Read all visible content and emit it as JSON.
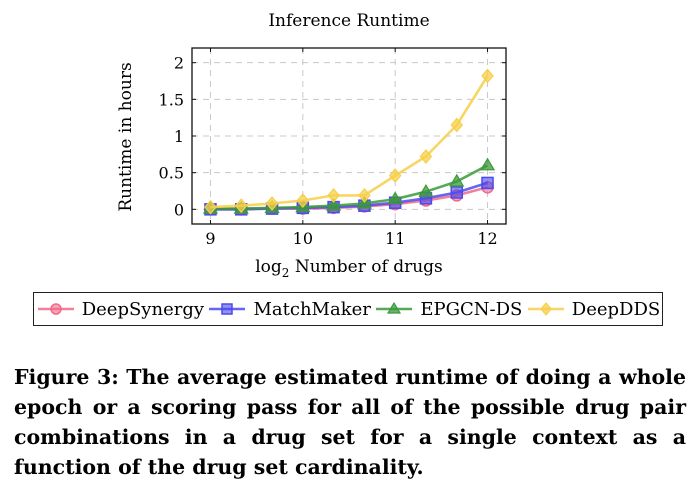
{
  "chart_data": {
    "type": "line",
    "title": "Inference Runtime",
    "xlabel_prefix": "log",
    "xlabel_sub": "2",
    "xlabel_rest": " Number of drugs",
    "ylabel": "Runtime in hours",
    "xlim": [
      8.8,
      12.2
    ],
    "ylim": [
      -0.2,
      2.2
    ],
    "xticks": [
      9,
      10,
      11,
      12
    ],
    "xtick_labels": [
      "9",
      "10",
      "11",
      "12"
    ],
    "yticks": [
      0,
      0.5,
      1,
      1.5,
      2
    ],
    "ytick_labels": [
      "0",
      "0.5",
      "1",
      "1.5",
      "2"
    ],
    "grid": true,
    "legend_position": "bottom",
    "x": [
      9,
      9.333,
      9.667,
      10,
      10.333,
      10.667,
      11,
      11.333,
      11.667,
      12
    ],
    "series": [
      {
        "name": "DeepSynergy",
        "color": "#f06a8a",
        "marker": "circle",
        "values": [
          0.0,
          0.0,
          0.01,
          0.01,
          0.02,
          0.04,
          0.07,
          0.12,
          0.19,
          0.3
        ]
      },
      {
        "name": "MatchMaker",
        "color": "#4a4aee",
        "marker": "square",
        "values": [
          0.0,
          0.0,
          0.01,
          0.02,
          0.03,
          0.05,
          0.09,
          0.15,
          0.23,
          0.36
        ]
      },
      {
        "name": "EPGCN-DS",
        "color": "#3a9a3a",
        "marker": "triangle",
        "values": [
          0.01,
          0.01,
          0.02,
          0.03,
          0.05,
          0.08,
          0.14,
          0.24,
          0.38,
          0.6
        ]
      },
      {
        "name": "DeepDDS",
        "color": "#f7cf4a",
        "marker": "diamond",
        "values": [
          0.03,
          0.05,
          0.08,
          0.12,
          0.19,
          0.19,
          0.46,
          0.72,
          1.15,
          1.82
        ]
      }
    ]
  },
  "caption": "Figure 3: The average estimated runtime of doing a whole epoch or a scoring pass for all of the possible drug pair combinations in a drug set for a single context as a function of the drug set cardinality."
}
